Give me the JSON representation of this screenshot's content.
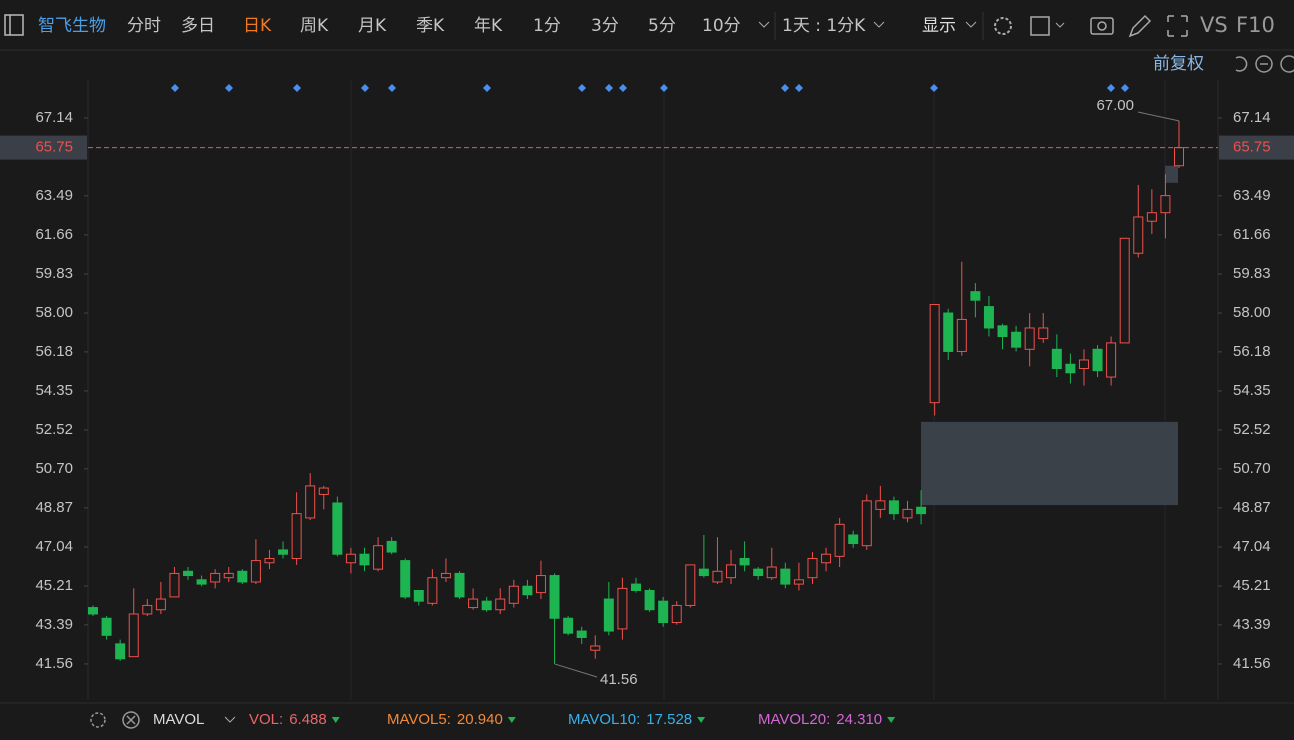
{
  "toolbar": {
    "stock": "智飞生物",
    "tabs": [
      "分时",
      "多日",
      "日K",
      "周K",
      "月K",
      "季K",
      "年K",
      "1分",
      "3分",
      "5分"
    ],
    "tab_more": "10分",
    "period": "1天 : 1分K",
    "display": "显示",
    "vs": "VS",
    "f10": "F10",
    "adjust": "前复权"
  },
  "chart_data": {
    "type": "candlestick",
    "open": [
      44.2,
      43.7,
      42.5,
      41.9,
      43.9,
      44.1,
      44.7,
      45.9,
      45.5,
      45.4,
      45.6,
      45.9,
      45.4,
      46.3,
      46.9,
      46.5,
      48.4,
      49.5,
      49.1,
      46.3,
      46.7,
      46.0,
      47.3,
      46.4,
      45.0,
      44.4,
      45.6,
      45.8,
      44.2,
      44.5,
      44.1,
      44.4,
      45.2,
      44.9,
      45.7,
      43.7,
      43.1,
      42.2,
      44.6,
      43.2,
      45.3,
      45.0,
      44.5,
      43.5,
      44.3,
      46.0,
      45.4,
      45.6,
      46.5,
      46.0,
      45.6,
      46.0,
      45.3,
      45.6,
      46.3,
      46.6,
      47.6,
      47.1,
      48.8,
      49.2,
      48.4,
      48.9,
      53.8,
      58.0,
      56.2,
      59.0,
      58.3,
      57.4,
      57.1,
      56.3,
      56.8,
      56.3,
      55.6,
      55.4,
      56.3,
      55.0,
      56.6,
      60.8,
      62.3,
      62.7,
      64.9
    ],
    "close": [
      43.9,
      42.9,
      41.8,
      43.9,
      44.3,
      44.6,
      45.8,
      45.7,
      45.3,
      45.8,
      45.8,
      45.4,
      46.4,
      46.5,
      46.7,
      48.6,
      49.9,
      49.8,
      46.7,
      46.7,
      46.2,
      47.1,
      46.8,
      44.7,
      44.5,
      45.6,
      45.8,
      44.7,
      44.6,
      44.1,
      44.6,
      45.2,
      44.8,
      45.7,
      43.7,
      43.0,
      42.8,
      42.4,
      43.1,
      45.1,
      45.0,
      44.1,
      43.5,
      44.3,
      46.2,
      45.7,
      45.9,
      46.2,
      46.2,
      45.7,
      46.1,
      45.3,
      45.5,
      46.5,
      46.7,
      48.1,
      47.2,
      49.2,
      49.2,
      48.6,
      48.8,
      48.6,
      58.4,
      56.2,
      57.7,
      58.6,
      57.3,
      56.9,
      56.4,
      57.3,
      57.3,
      55.4,
      55.2,
      55.8,
      55.3,
      56.6,
      61.5,
      62.5,
      62.7,
      63.5,
      65.75
    ],
    "high": [
      44.3,
      43.8,
      42.7,
      45.1,
      44.6,
      45.4,
      46.1,
      46.1,
      45.7,
      46.0,
      46.1,
      46.0,
      47.4,
      46.9,
      47.3,
      49.6,
      50.5,
      49.9,
      49.4,
      47.0,
      47.0,
      47.5,
      47.5,
      46.5,
      45.0,
      46.0,
      46.5,
      45.9,
      45.1,
      44.7,
      45.1,
      45.5,
      45.5,
      46.4,
      45.8,
      43.8,
      43.3,
      42.9,
      45.4,
      45.6,
      45.6,
      45.1,
      44.7,
      44.5,
      46.2,
      47.6,
      47.5,
      46.9,
      47.3,
      46.1,
      47.0,
      46.3,
      46.3,
      46.8,
      47.0,
      48.4,
      47.8,
      49.5,
      49.9,
      49.4,
      49.2,
      49.7,
      58.4,
      58.2,
      60.4,
      59.4,
      58.8,
      57.5,
      57.4,
      58.0,
      58.0,
      57.0,
      56.1,
      56.3,
      56.5,
      56.9,
      61.5,
      64.0,
      63.8,
      64.5,
      67.0
    ],
    "low": [
      43.8,
      42.7,
      41.7,
      41.9,
      43.8,
      43.9,
      44.7,
      45.5,
      45.2,
      45.1,
      45.4,
      45.3,
      45.3,
      46.0,
      46.5,
      46.2,
      48.3,
      48.8,
      46.6,
      45.8,
      45.9,
      45.9,
      46.7,
      44.6,
      44.3,
      44.3,
      45.4,
      44.6,
      44.1,
      44.0,
      43.9,
      44.2,
      44.6,
      44.6,
      41.56,
      42.9,
      42.5,
      41.8,
      42.9,
      42.7,
      44.9,
      44.0,
      43.3,
      43.4,
      44.2,
      45.6,
      45.3,
      45.3,
      45.9,
      45.5,
      45.5,
      45.1,
      45.0,
      45.3,
      45.9,
      46.1,
      47.0,
      46.9,
      48.4,
      48.3,
      48.2,
      48.1,
      53.2,
      55.8,
      56.0,
      57.8,
      56.9,
      56.3,
      56.2,
      55.5,
      56.6,
      55.0,
      54.7,
      54.6,
      55.0,
      54.6,
      56.6,
      60.6,
      61.7,
      61.5,
      64.8
    ],
    "up_color": "#f0504a",
    "down_color": "#1fb452",
    "ylim": [
      39.87,
      67.98
    ],
    "yticks": [
      41.56,
      43.39,
      45.21,
      47.04,
      48.87,
      {
        "value": 50.7,
        "label": "50.70"
      },
      52.52,
      54.35,
      56.18,
      {
        "value": 58,
        "label": "58.00"
      },
      59.83,
      61.66,
      63.49,
      67.14
    ],
    "last_price": 65.75,
    "gaps": [
      {
        "from": 49.0,
        "to": 52.9
      },
      {
        "from": 64.1,
        "to": 64.9
      }
    ],
    "annotations": [
      {
        "text": "67.00"
      },
      {
        "text": "41.56"
      }
    ]
  },
  "indicator": {
    "name": "MAVOL",
    "items": [
      {
        "label": "VOL:",
        "value": "6.488",
        "color": "#e8666a"
      },
      {
        "label": "MAVOL5:",
        "value": "20.940",
        "color": "#f08a3a"
      },
      {
        "label": "MAVOL10:",
        "value": "17.528",
        "color": "#3ab0ea"
      },
      {
        "label": "MAVOL20:",
        "value": "24.310",
        "color": "#d566d5"
      }
    ]
  }
}
